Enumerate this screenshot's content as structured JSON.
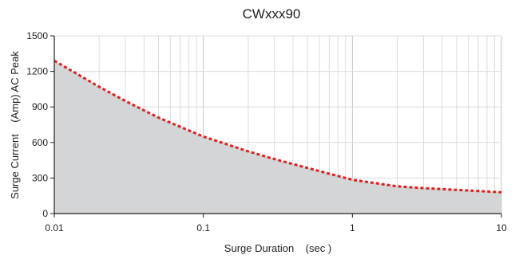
{
  "chart_data": {
    "type": "area",
    "title": "CWxxx90",
    "xlabel": "Surge Duration    (sec )",
    "ylabel": "Surge Current    (Amp) AC Peak",
    "x_scale": "log",
    "xlim": [
      0.01,
      10
    ],
    "ylim": [
      0,
      1500
    ],
    "x_ticks": [
      0.01,
      0.1,
      1,
      10
    ],
    "x_tick_labels": [
      "0.01",
      "0.1",
      "1",
      "10"
    ],
    "y_ticks": [
      0,
      300,
      600,
      900,
      1200,
      1500
    ],
    "y_tick_labels": [
      "0",
      "300",
      "600",
      "900",
      "1200",
      "1500"
    ],
    "grid": true,
    "series": [
      {
        "x": [
          0.01,
          0.02,
          0.03,
          0.05,
          0.1,
          0.2,
          0.3,
          0.5,
          1,
          2,
          3,
          5,
          10
        ],
        "y": [
          1290,
          1070,
          950,
          810,
          650,
          525,
          460,
          385,
          285,
          230,
          215,
          200,
          180
        ],
        "line_color": "#e02020",
        "line_style": "dotted",
        "fill_color": "#d4d5d6"
      }
    ]
  }
}
